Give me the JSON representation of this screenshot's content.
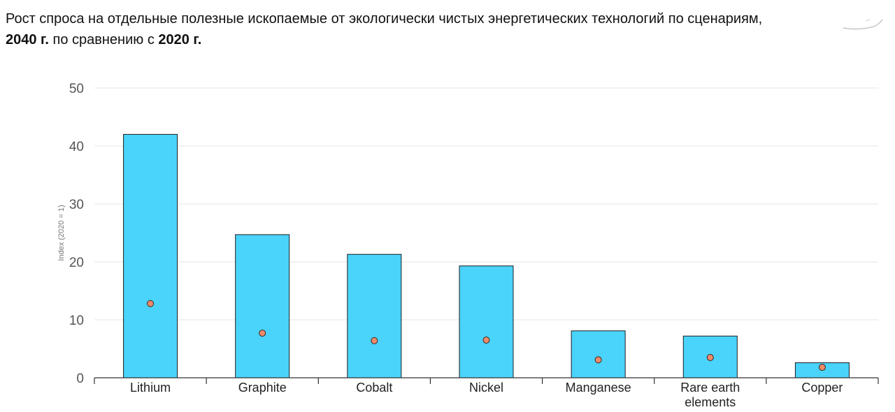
{
  "title": {
    "part1": "Рост спроса на отдельные полезные ископаемые от экологически чистых энергетических технологий по сценариям,",
    "year_a": "2040 г.",
    "part2": " по сравнению с ",
    "year_b": "2020 г."
  },
  "colors": {
    "bar": "#4ad3fb",
    "bar_stroke": "#1c1c1c",
    "dot": "#f08a6a",
    "dot_stroke": "#3a2a20",
    "grid": "#e6e6e6",
    "axis": "#333333"
  },
  "chart_data": {
    "type": "bar",
    "title": "",
    "xlabel": "",
    "ylabel": "Index (2020 = 1)",
    "ylim": [
      0,
      50
    ],
    "yticks": [
      0,
      10,
      20,
      30,
      40,
      50
    ],
    "grid": true,
    "categories": [
      "Lithium",
      "Graphite",
      "Cobalt",
      "Nickel",
      "Manganese",
      "Rare earth elements",
      "Copper"
    ],
    "category_lines": [
      [
        "Lithium"
      ],
      [
        "Graphite"
      ],
      [
        "Cobalt"
      ],
      [
        "Nickel"
      ],
      [
        "Manganese"
      ],
      [
        "Rare earth",
        "elements"
      ],
      [
        "Copper"
      ]
    ],
    "series": [
      {
        "kind": "bar",
        "values": [
          42,
          24.7,
          21.3,
          19.3,
          8.1,
          7.2,
          2.6
        ]
      },
      {
        "kind": "dot",
        "values": [
          12.8,
          7.7,
          6.4,
          6.5,
          3.1,
          3.5,
          1.8
        ]
      }
    ]
  }
}
